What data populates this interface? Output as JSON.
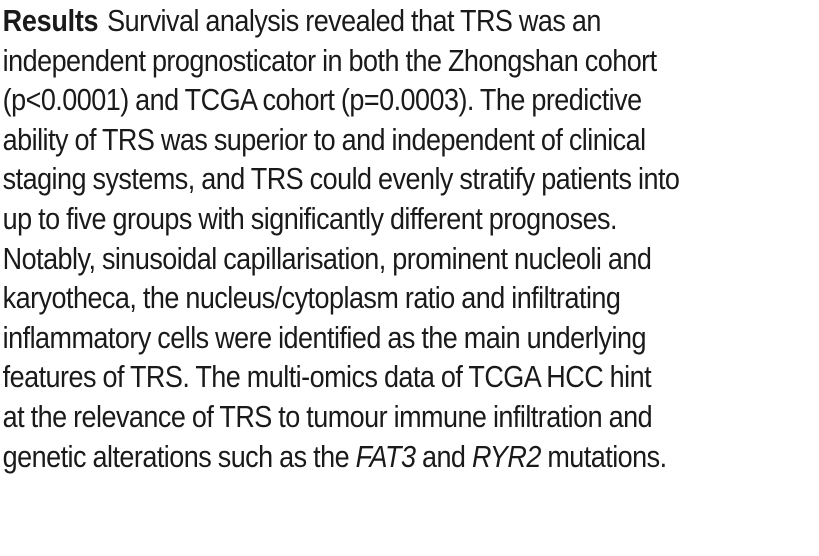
{
  "section": {
    "heading": "Results",
    "lines": [
      "Survival analysis revealed that TRS was an",
      "independent prognosticator in both the Zhongshan cohort",
      "(p<0.0001) and TCGA cohort (p=0.0003). The predictive",
      "ability of TRS was superior to and independent of clinical",
      "staging systems, and TRS could evenly stratify patients into",
      "up to five groups with significantly different prognoses.",
      "Notably, sinusoidal capillarisation, prominent nucleoli and",
      "karyotheca, the nucleus/cytoplasm ratio and infiltrating",
      "inflammatory cells were identified as the main underlying",
      "features of TRS. The multi-omics data of TCGA HCC hint",
      "at the relevance of TRS to tumour immune infiltration and"
    ],
    "last_line": {
      "prefix": "genetic alterations such as the ",
      "gene1": "FAT3",
      "middle": " and ",
      "gene2": "RYR2",
      "suffix": " mutations."
    }
  }
}
